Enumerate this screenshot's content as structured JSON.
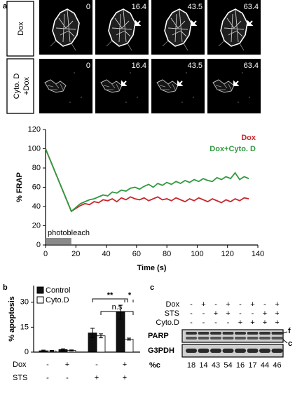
{
  "panel_a": {
    "label": "a",
    "rows": [
      {
        "label": [
          "Dox"
        ]
      },
      {
        "label": [
          "Cyto. D",
          "+Dox"
        ]
      }
    ],
    "times": [
      "0",
      "16.4",
      "43.5",
      "63.4"
    ]
  },
  "chart_data": [
    {
      "type": "line",
      "ylabel": "% FRAP",
      "xlabel": "Time (s)",
      "x": [
        0,
        17,
        20,
        23,
        26,
        29,
        32,
        35,
        38,
        41,
        44,
        47,
        50,
        53,
        56,
        59,
        62,
        65,
        68,
        71,
        74,
        77,
        80,
        83,
        86,
        89,
        92,
        95,
        98,
        101,
        104,
        107,
        110,
        113,
        116,
        119,
        122,
        125,
        128,
        131,
        134
      ],
      "series": [
        {
          "name": "Dox",
          "color": "#c8282d",
          "values": [
            100,
            35,
            38,
            41,
            43,
            42,
            45,
            44,
            47,
            46,
            48,
            45,
            49,
            47,
            50,
            48,
            47,
            49,
            46,
            48,
            50,
            47,
            48,
            46,
            49,
            47,
            45,
            48,
            46,
            49,
            47,
            45,
            48,
            46,
            44,
            47,
            45,
            48,
            46,
            49,
            48
          ]
        },
        {
          "name": "Dox+Cyto. D",
          "color": "#2f9a3f",
          "values": [
            100,
            35,
            39,
            43,
            45,
            47,
            48,
            50,
            52,
            51,
            55,
            54,
            57,
            56,
            59,
            60,
            58,
            61,
            63,
            60,
            64,
            62,
            65,
            63,
            66,
            64,
            67,
            65,
            68,
            66,
            69,
            67,
            66,
            70,
            68,
            71,
            69,
            75,
            68,
            71,
            69
          ]
        }
      ],
      "xlim": [
        0,
        140
      ],
      "ylim": [
        0,
        120
      ],
      "xticks": [
        0,
        20,
        40,
        60,
        80,
        100,
        120,
        140
      ],
      "yticks": [
        0,
        20,
        40,
        60,
        80,
        100,
        120
      ],
      "legend": "upper right",
      "annotation": {
        "text": "photobleach",
        "x": [
          0,
          17
        ]
      }
    },
    {
      "type": "bar",
      "label": "b",
      "ylabel": "% apoptosis",
      "series": [
        {
          "name": "Control",
          "color": "#111111",
          "values": [
            0.8,
            1.5,
            11.5,
            24
          ],
          "errors": [
            0.4,
            0.5,
            2.8,
            4.2
          ]
        },
        {
          "name": "Cyto.D",
          "color": "#ffffff",
          "values": [
            0.7,
            1.0,
            9.8,
            7.8
          ],
          "errors": [
            0.3,
            0.3,
            1.2,
            0.6
          ]
        }
      ],
      "ylim": [
        0,
        40
      ],
      "yticks": [
        0,
        15,
        30
      ],
      "legend": "upper left",
      "conditions": [
        {
          "name": "Dox",
          "values": [
            "-",
            "+",
            "-",
            "+"
          ]
        },
        {
          "name": "STS",
          "values": [
            "-",
            "-",
            "+",
            "+"
          ]
        }
      ],
      "annotations": [
        "**",
        "n.s",
        "*"
      ]
    }
  ],
  "panel_c": {
    "label": "c",
    "conditions": [
      {
        "name": "Dox",
        "values": [
          "-",
          "+",
          "-",
          "+",
          "-",
          "+",
          "-",
          "+"
        ]
      },
      {
        "name": "STS",
        "values": [
          "-",
          "-",
          "+",
          "+",
          "-",
          "-",
          "+",
          "+"
        ]
      },
      {
        "name": "Cyto.D",
        "values": [
          "-",
          "-",
          "-",
          "-",
          "+",
          "+",
          "+",
          "+"
        ]
      }
    ],
    "blots": [
      "PARP",
      "G3PDH"
    ],
    "bands": [
      "f",
      "c"
    ],
    "pc_label": "%c",
    "pc": [
      18,
      14,
      43,
      54,
      16,
      17,
      44,
      46
    ]
  }
}
